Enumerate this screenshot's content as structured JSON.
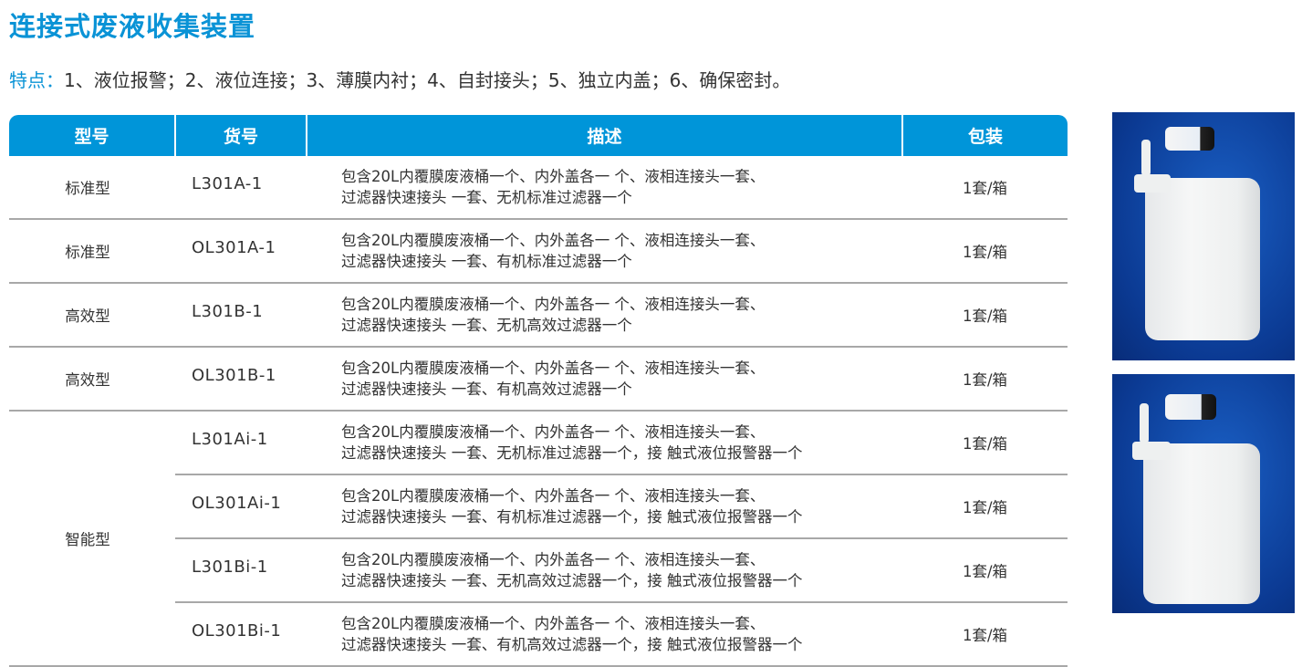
{
  "title": "连接式废液收集装置",
  "features": {
    "label": "特点：",
    "text": "1、液位报警；2、液位连接；3、薄膜内衬；4、自封接头；5、独立内盖；6、确保密封。"
  },
  "table": {
    "headers": [
      "型号",
      "货号",
      "描述",
      "包装"
    ],
    "rows": [
      {
        "type": "标准型",
        "code": "L301A-1",
        "desc1": "包含20L内覆膜废液桶一个、内外盖各一 个、液相连接头一套、",
        "desc2": "过滤器快速接头 一套、无机标准过滤器一个",
        "pack": "1套/箱"
      },
      {
        "type": "标准型",
        "code": "OL301A-1",
        "desc1": "包含20L内覆膜废液桶一个、内外盖各一 个、液相连接头一套、",
        "desc2": "过滤器快速接头 一套、有机标准过滤器一个",
        "pack": "1套/箱"
      },
      {
        "type": "高效型",
        "code": "L301B-1",
        "desc1": "包含20L内覆膜废液桶一个、内外盖各一 个、液相连接头一套、",
        "desc2": "过滤器快速接头 一套、无机高效过滤器一个",
        "pack": "1套/箱"
      },
      {
        "type": "高效型",
        "code": "OL301B-1",
        "desc1": "包含20L内覆膜废液桶一个、内外盖各一 个、液相连接头一套、",
        "desc2": "过滤器快速接头 一套、有机高效过滤器一个",
        "pack": "1套/箱"
      },
      {
        "type": "智能型",
        "code": "L301Ai-1",
        "desc1": "包含20L内覆膜废液桶一个、内外盖各一 个、液相连接头一套、",
        "desc2": "过滤器快速接头 一套、无机标准过滤器一个，接 触式液位报警器一个",
        "pack": "1套/箱"
      },
      {
        "code": "OL301Ai-1",
        "desc1": "包含20L内覆膜废液桶一个、内外盖各一 个、液相连接头一套、",
        "desc2": "过滤器快速接头 一套、有机标准过滤器一个，接 触式液位报警器一个",
        "pack": "1套/箱"
      },
      {
        "code": "L301Bi-1",
        "desc1": "包含20L内覆膜废液桶一个、内外盖各一 个、液相连接头一套、",
        "desc2": "过滤器快速接头 一套、无机高效过滤器一个，接 触式液位报警器一个",
        "pack": "1套/箱"
      },
      {
        "code": "OL301Bi-1",
        "desc1": "包含20L内覆膜废液桶一个、内外盖各一 个、液相连接头一套、",
        "desc2": "过滤器快速接头 一套、有机高效过滤器一个，接 触式液位报警器一个",
        "pack": "1套/箱"
      }
    ]
  },
  "colors": {
    "accent": "#0095d9",
    "title": "#0a93d6",
    "photo_background": "#0b3a93"
  }
}
